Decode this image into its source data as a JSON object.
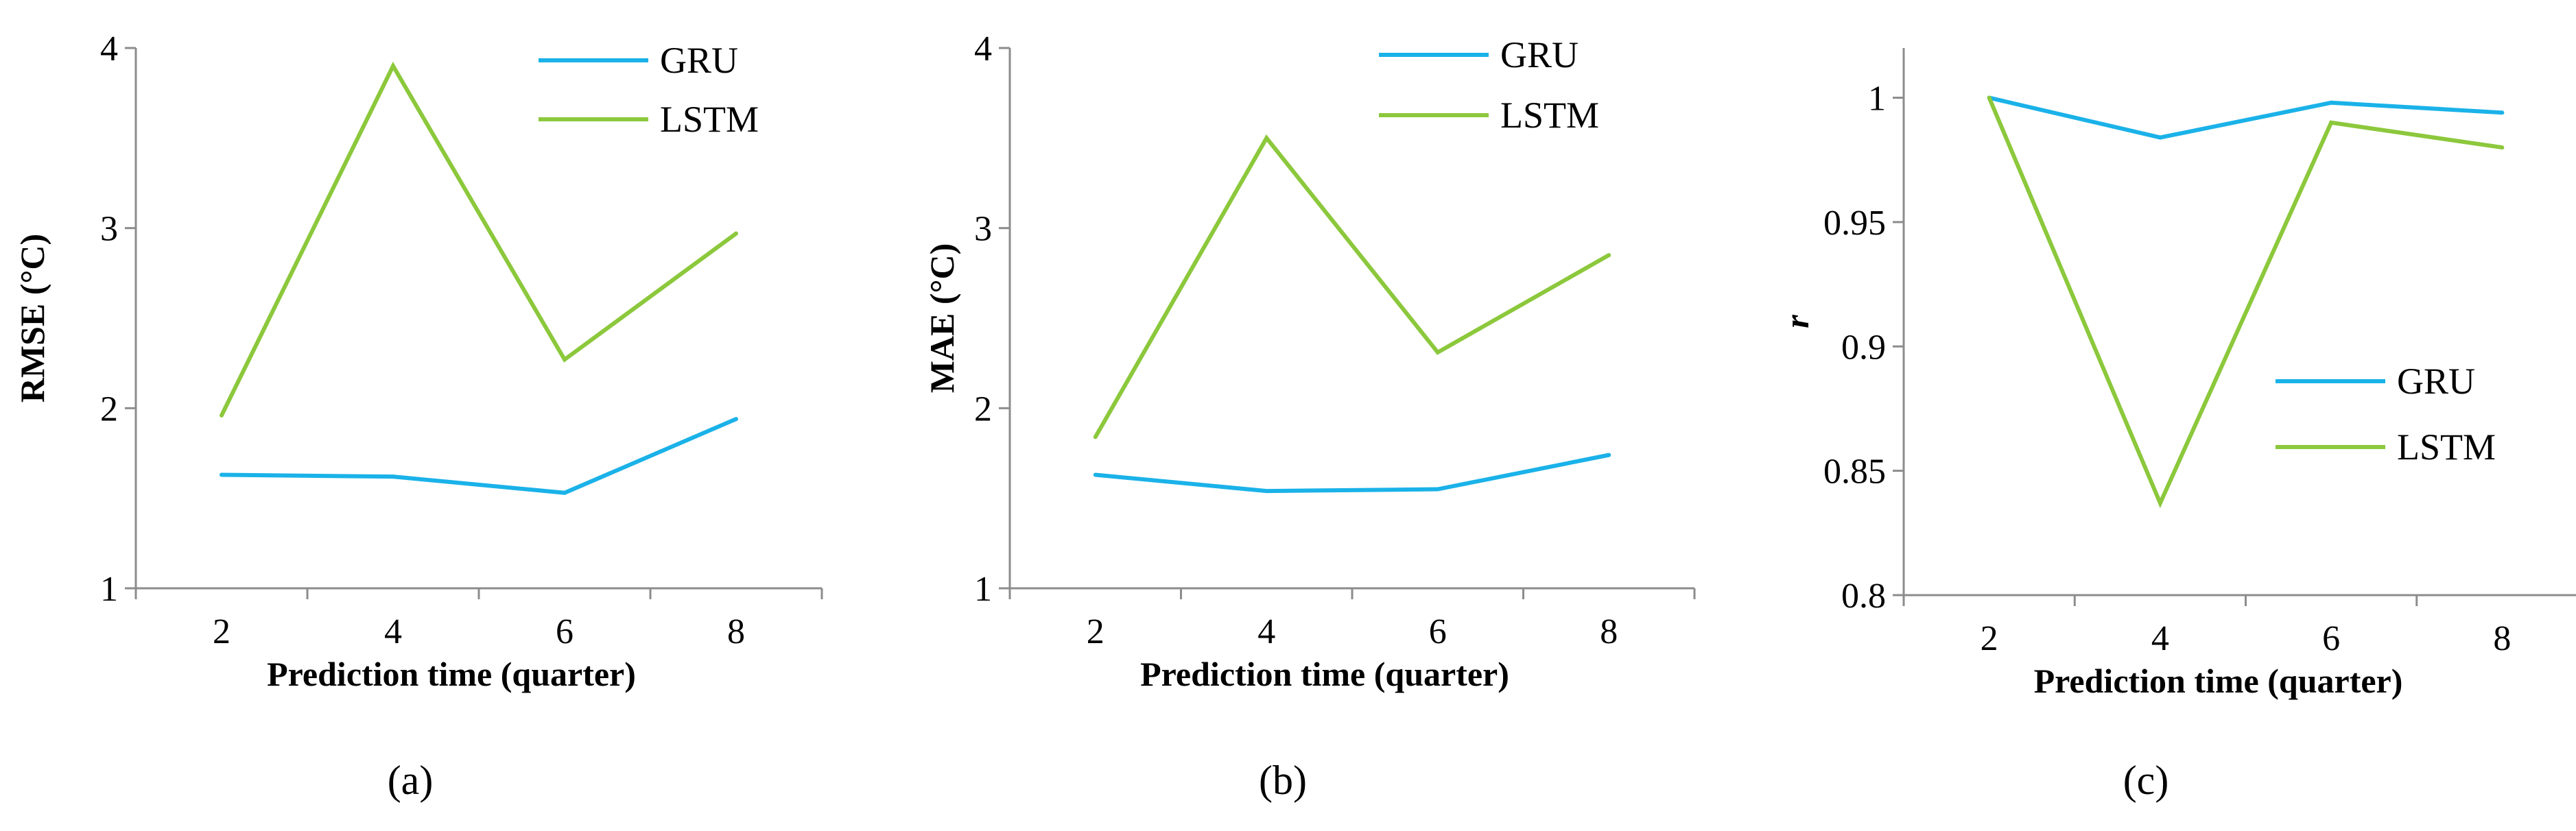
{
  "chart_data": [
    {
      "type": "line",
      "panel_label": "(a)",
      "x": [
        2,
        4,
        6,
        8
      ],
      "xticks": [
        "2",
        "4",
        "6",
        "8"
      ],
      "xlabel": "Prediction time  (quarter)",
      "ylabel": "RMSE (°C)",
      "ylim": [
        1,
        4
      ],
      "yticks": [
        "1",
        "2",
        "3",
        "4"
      ],
      "legend_position": "top-right",
      "series": [
        {
          "name": "GRU",
          "color": "#1ab2e8",
          "values": [
            1.63,
            1.62,
            1.53,
            1.94
          ]
        },
        {
          "name": "LSTM",
          "color": "#8cc83c",
          "values": [
            1.96,
            3.9,
            2.27,
            2.97
          ]
        }
      ]
    },
    {
      "type": "line",
      "panel_label": "(b)",
      "x": [
        2,
        4,
        6,
        8
      ],
      "xticks": [
        "2",
        "4",
        "6",
        "8"
      ],
      "xlabel": "Prediction time (quarter)",
      "ylabel": "MAE (°C)",
      "ylim": [
        1,
        4
      ],
      "yticks": [
        "1",
        "2",
        "3",
        "4"
      ],
      "legend_position": "top-right",
      "series": [
        {
          "name": "GRU",
          "color": "#1ab2e8",
          "values": [
            1.63,
            1.54,
            1.55,
            1.74
          ]
        },
        {
          "name": "LSTM",
          "color": "#8cc83c",
          "values": [
            1.84,
            3.5,
            2.31,
            2.85
          ]
        }
      ]
    },
    {
      "type": "line",
      "panel_label": "(c)",
      "x": [
        2,
        4,
        6,
        8
      ],
      "xticks": [
        "2",
        "4",
        "6",
        "8"
      ],
      "xlabel": "Prediction time (quarter)",
      "ylabel": "r",
      "ylim": [
        0.8,
        1.02
      ],
      "yticks": [
        "0.8",
        "0.85",
        "0.9",
        "0.95",
        "1"
      ],
      "legend_position": "right",
      "series": [
        {
          "name": "GRU",
          "color": "#1ab2e8",
          "values": [
            1.0,
            0.984,
            0.998,
            0.994
          ]
        },
        {
          "name": "LSTM",
          "color": "#8cc83c",
          "values": [
            1.0,
            0.837,
            0.99,
            0.98
          ]
        }
      ]
    }
  ]
}
